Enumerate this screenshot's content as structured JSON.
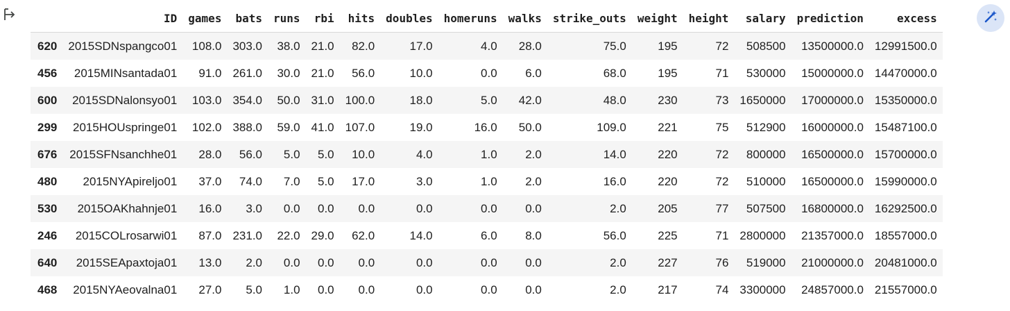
{
  "table": {
    "columns": [
      "",
      "ID",
      "games",
      "bats",
      "runs",
      "rbi",
      "hits",
      "doubles",
      "homeruns",
      "walks",
      "strike_outs",
      "weight",
      "height",
      "salary",
      "prediction",
      "excess"
    ],
    "rows": [
      {
        "index": "620",
        "cells": [
          "2015SDNspangco01",
          "108.0",
          "303.0",
          "38.0",
          "21.0",
          "82.0",
          "17.0",
          "4.0",
          "28.0",
          "75.0",
          "195",
          "72",
          "508500",
          "13500000.0",
          "12991500.0"
        ]
      },
      {
        "index": "456",
        "cells": [
          "2015MINsantada01",
          "91.0",
          "261.0",
          "30.0",
          "21.0",
          "56.0",
          "10.0",
          "0.0",
          "6.0",
          "68.0",
          "195",
          "71",
          "530000",
          "15000000.0",
          "14470000.0"
        ]
      },
      {
        "index": "600",
        "cells": [
          "2015SDNalonsyo01",
          "103.0",
          "354.0",
          "50.0",
          "31.0",
          "100.0",
          "18.0",
          "5.0",
          "42.0",
          "48.0",
          "230",
          "73",
          "1650000",
          "17000000.0",
          "15350000.0"
        ]
      },
      {
        "index": "299",
        "cells": [
          "2015HOUspringe01",
          "102.0",
          "388.0",
          "59.0",
          "41.0",
          "107.0",
          "19.0",
          "16.0",
          "50.0",
          "109.0",
          "221",
          "75",
          "512900",
          "16000000.0",
          "15487100.0"
        ]
      },
      {
        "index": "676",
        "cells": [
          "2015SFNsanchhe01",
          "28.0",
          "56.0",
          "5.0",
          "5.0",
          "10.0",
          "4.0",
          "1.0",
          "2.0",
          "14.0",
          "220",
          "72",
          "800000",
          "16500000.0",
          "15700000.0"
        ]
      },
      {
        "index": "480",
        "cells": [
          "2015NYApireljo01",
          "37.0",
          "74.0",
          "7.0",
          "5.0",
          "17.0",
          "3.0",
          "1.0",
          "2.0",
          "16.0",
          "220",
          "72",
          "510000",
          "16500000.0",
          "15990000.0"
        ]
      },
      {
        "index": "530",
        "cells": [
          "2015OAKhahnje01",
          "16.0",
          "3.0",
          "0.0",
          "0.0",
          "0.0",
          "0.0",
          "0.0",
          "0.0",
          "2.0",
          "205",
          "77",
          "507500",
          "16800000.0",
          "16292500.0"
        ]
      },
      {
        "index": "246",
        "cells": [
          "2015COLrosarwi01",
          "87.0",
          "231.0",
          "22.0",
          "29.0",
          "62.0",
          "14.0",
          "6.0",
          "8.0",
          "56.0",
          "225",
          "71",
          "2800000",
          "21357000.0",
          "18557000.0"
        ]
      },
      {
        "index": "640",
        "cells": [
          "2015SEApaxtoja01",
          "13.0",
          "2.0",
          "0.0",
          "0.0",
          "0.0",
          "0.0",
          "0.0",
          "0.0",
          "2.0",
          "227",
          "76",
          "519000",
          "21000000.0",
          "20481000.0"
        ]
      },
      {
        "index": "468",
        "cells": [
          "2015NYAeovalna01",
          "27.0",
          "5.0",
          "1.0",
          "0.0",
          "0.0",
          "0.0",
          "0.0",
          "0.0",
          "2.0",
          "217",
          "74",
          "3300000",
          "24857000.0",
          "21557000.0"
        ]
      }
    ]
  },
  "icons": {
    "output": "output-arrow-icon",
    "magic": "magic-wand-icon"
  },
  "colors": {
    "stripe": "#f5f5f5",
    "magic_bg": "#dbe5f7",
    "magic_fg": "#1a56c9"
  }
}
